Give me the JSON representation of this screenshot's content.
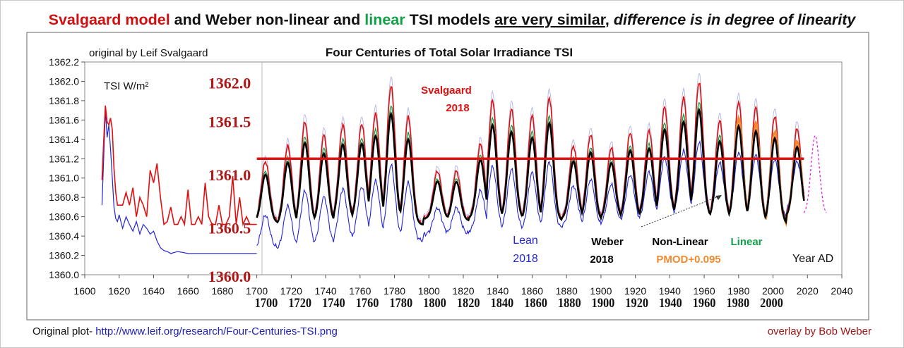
{
  "headline": {
    "part1": "Svalgaard model",
    "part2": " and Weber non-linear and ",
    "part3": "linear",
    "part4": " TSI models ",
    "part5": "are very similar",
    "part6": ", ",
    "part7": "difference is in degree of linearity"
  },
  "footer": {
    "prefix": "Original plot- ",
    "link": "http://www.leif.org/research/Four-Centuries-TSI.png",
    "credit": "overlay by Bob Weber"
  },
  "colors": {
    "svalgaard": "#e01010",
    "lean": "#2424d8",
    "weber": "#000000",
    "linear": "#13a04a",
    "pmod": "#f08a30",
    "forecast": "#e020e0",
    "mean_line": "#e01010",
    "lean_faint": "#b8bce8"
  },
  "chart_data": {
    "type": "line",
    "title": "Four Centuries of Total Solar Irradiance TSI",
    "source_note": "original by Leif Svalgaard",
    "ylabel": "TSI W/m²",
    "xlabel": "Year AD",
    "xlim": [
      1600,
      2040
    ],
    "ylim": [
      1360.0,
      1362.2
    ],
    "x_ticks": [
      1600,
      1620,
      1640,
      1660,
      1680,
      1700,
      1720,
      1740,
      1760,
      1780,
      1800,
      1820,
      1840,
      1860,
      1880,
      1900,
      1920,
      1940,
      1960,
      1980,
      2000,
      2020,
      2040
    ],
    "y_ticks": [
      "1360.0",
      "1360.2",
      "1360.4",
      "1360.6",
      "1360.8",
      "1361.0",
      "1361.2",
      "1361.4",
      "1361.6",
      "1361.8",
      "1362.0",
      "1362.2"
    ],
    "overlay_y_ticks": [
      {
        "label": "1362.0",
        "value": 1362.0
      },
      {
        "label": "1361.5",
        "value": 1361.6
      },
      {
        "label": "1361.0",
        "value": 1361.05
      },
      {
        "label": "1360.5",
        "value": 1360.5
      },
      {
        "label": "1360.0",
        "value": 1360.0
      }
    ],
    "overlay_x_ticks": [
      1700,
      1720,
      1740,
      1760,
      1780,
      1800,
      1820,
      1840,
      1860,
      1880,
      1900,
      1920,
      1940,
      1960,
      1980,
      2000
    ],
    "mean_line": {
      "x": [
        1700,
        2018
      ],
      "y": 1361.2
    },
    "annotations": [
      {
        "text": "Svalgaard",
        "color": "#e01010"
      },
      {
        "text": "2018",
        "color": "#e01010"
      },
      {
        "text": "Lean",
        "color": "#2424d8"
      },
      {
        "text": "2018",
        "color": "#2424d8"
      },
      {
        "text": "Weber",
        "color": "#000000"
      },
      {
        "text": "2018",
        "color": "#000000"
      },
      {
        "text": "Non-Linear",
        "color": "#000000"
      },
      {
        "text": "Linear",
        "color": "#13a04a"
      },
      {
        "text": "PMOD+0.095",
        "color": "#f08a30"
      }
    ],
    "cycles": [
      {
        "t": 1705,
        "amp": 0.62,
        "low": 1360.54
      },
      {
        "t": 1718,
        "amp": 0.8,
        "low": 1360.52
      },
      {
        "t": 1728,
        "amp": 1.03,
        "low": 1360.54
      },
      {
        "t": 1739,
        "amp": 0.89,
        "low": 1360.54
      },
      {
        "t": 1750,
        "amp": 0.97,
        "low": 1360.57
      },
      {
        "t": 1761,
        "amp": 0.97,
        "low": 1360.58
      },
      {
        "t": 1769,
        "amp": 1.08,
        "low": 1360.57
      },
      {
        "t": 1778,
        "amp": 1.38,
        "low": 1360.56
      },
      {
        "t": 1788,
        "amp": 1.1,
        "low": 1360.52
      },
      {
        "t": 1805,
        "amp": 0.48,
        "low": 1360.58
      },
      {
        "t": 1816,
        "amp": 0.5,
        "low": 1360.56
      },
      {
        "t": 1830,
        "amp": 0.76,
        "low": 1360.58
      },
      {
        "t": 1837,
        "amp": 1.22,
        "low": 1360.57
      },
      {
        "t": 1848,
        "amp": 1.12,
        "low": 1360.58
      },
      {
        "t": 1860,
        "amp": 1.07,
        "low": 1360.56
      },
      {
        "t": 1870,
        "amp": 1.26,
        "low": 1360.56
      },
      {
        "t": 1884,
        "amp": 0.74,
        "low": 1360.58
      },
      {
        "t": 1894,
        "amp": 0.88,
        "low": 1360.56
      },
      {
        "t": 1906,
        "amp": 0.72,
        "low": 1360.58
      },
      {
        "t": 1917,
        "amp": 0.88,
        "low": 1360.58
      },
      {
        "t": 1928,
        "amp": 0.88,
        "low": 1360.6
      },
      {
        "t": 1937,
        "amp": 1.1,
        "low": 1360.62
      },
      {
        "t": 1948,
        "amp": 1.2,
        "low": 1360.62
      },
      {
        "t": 1957,
        "amp": 1.38,
        "low": 1360.6
      },
      {
        "t": 1969,
        "amp": 1.0,
        "low": 1360.58
      },
      {
        "t": 1980,
        "amp": 1.22,
        "low": 1360.56
      },
      {
        "t": 1990,
        "amp": 1.18,
        "low": 1360.54
      },
      {
        "t": 2001,
        "amp": 1.1,
        "low": 1360.53
      },
      {
        "t": 2014,
        "amp": 0.9,
        "low": 1360.6
      }
    ],
    "svalgaard_pre1700": {
      "x": [
        1610,
        1611,
        1612,
        1613,
        1614,
        1615,
        1616,
        1617,
        1618,
        1619,
        1620,
        1622,
        1624,
        1626,
        1628,
        1630,
        1632,
        1634,
        1636,
        1638,
        1640,
        1642,
        1644,
        1646,
        1648,
        1650,
        1652,
        1654,
        1656,
        1658,
        1660,
        1662,
        1664,
        1666,
        1668,
        1670,
        1672,
        1674,
        1676,
        1678,
        1680,
        1682,
        1684,
        1686,
        1688,
        1690,
        1692,
        1694,
        1696,
        1698,
        1700
      ],
      "y": [
        1360.98,
        1361.38,
        1361.75,
        1361.58,
        1361.55,
        1361.62,
        1361.5,
        1361.1,
        1360.85,
        1360.72,
        1360.72,
        1360.72,
        1360.85,
        1360.72,
        1360.9,
        1360.6,
        1360.8,
        1360.72,
        1360.6,
        1361.08,
        1360.95,
        1361.15,
        1360.8,
        1360.52,
        1360.55,
        1360.7,
        1360.52,
        1360.52,
        1360.6,
        1360.52,
        1360.88,
        1360.52,
        1360.52,
        1360.6,
        1360.52,
        1360.95,
        1360.6,
        1360.52,
        1360.52,
        1360.72,
        1360.52,
        1360.52,
        1360.6,
        1361.02,
        1360.52,
        1360.8,
        1360.52,
        1360.6,
        1360.52,
        1360.52,
        1360.52
      ]
    },
    "lean_pre1700": {
      "x": [
        1610,
        1611,
        1612,
        1613,
        1614,
        1615,
        1616,
        1617,
        1618,
        1619,
        1620,
        1622,
        1624,
        1626,
        1628,
        1630,
        1632,
        1634,
        1636,
        1638,
        1640,
        1642,
        1644,
        1646,
        1648,
        1650,
        1654,
        1660,
        1670,
        1680,
        1690,
        1700
      ],
      "y": [
        1360.72,
        1361.2,
        1361.7,
        1361.42,
        1361.55,
        1361.3,
        1361.0,
        1360.7,
        1360.58,
        1360.55,
        1360.62,
        1360.48,
        1360.6,
        1360.52,
        1360.45,
        1360.55,
        1360.42,
        1360.52,
        1360.48,
        1360.42,
        1360.45,
        1360.35,
        1360.28,
        1360.25,
        1360.24,
        1360.22,
        1360.24,
        1360.22,
        1360.22,
        1360.22,
        1360.22,
        1360.22
      ]
    }
  }
}
